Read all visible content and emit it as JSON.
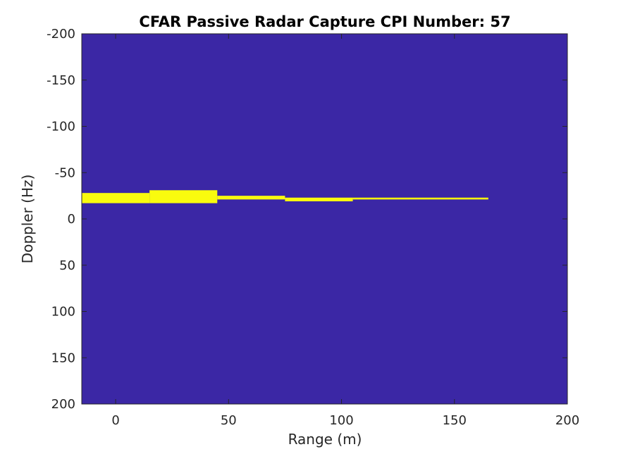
{
  "chart_data": {
    "type": "heatmap",
    "title": "CFAR Passive Radar Capture CPI Number: 57",
    "xlabel": "Range (m)",
    "ylabel": "Doppler (Hz)",
    "xlim": [
      -15,
      200
    ],
    "ylim": [
      -200,
      200
    ],
    "y_direction": "reverse",
    "x_ticks": [
      0,
      50,
      100,
      150,
      200
    ],
    "x_tick_labels": [
      "0",
      "50",
      "100",
      "150",
      "200"
    ],
    "y_ticks": [
      -200,
      -150,
      -100,
      -50,
      0,
      50,
      100,
      150,
      200
    ],
    "y_tick_labels": [
      "-200",
      "-150",
      "-100",
      "-50",
      "0",
      "50",
      "100",
      "150",
      "200"
    ],
    "background_value": 0,
    "colors": {
      "background": "#3b27a5",
      "detection": "#f9fb0e",
      "axis": "#262626"
    },
    "detections": [
      {
        "x0": -15,
        "x1": 15,
        "y0": -28,
        "y1": -17,
        "value": 1
      },
      {
        "x0": 15,
        "x1": 45,
        "y0": -31,
        "y1": -17,
        "value": 1
      },
      {
        "x0": 45,
        "x1": 75,
        "y0": -25,
        "y1": -21,
        "value": 1
      },
      {
        "x0": 75,
        "x1": 105,
        "y0": -23,
        "y1": -19,
        "value": 1
      },
      {
        "x0": 105,
        "x1": 165,
        "y0": -23,
        "y1": -21,
        "value": 1
      }
    ]
  }
}
